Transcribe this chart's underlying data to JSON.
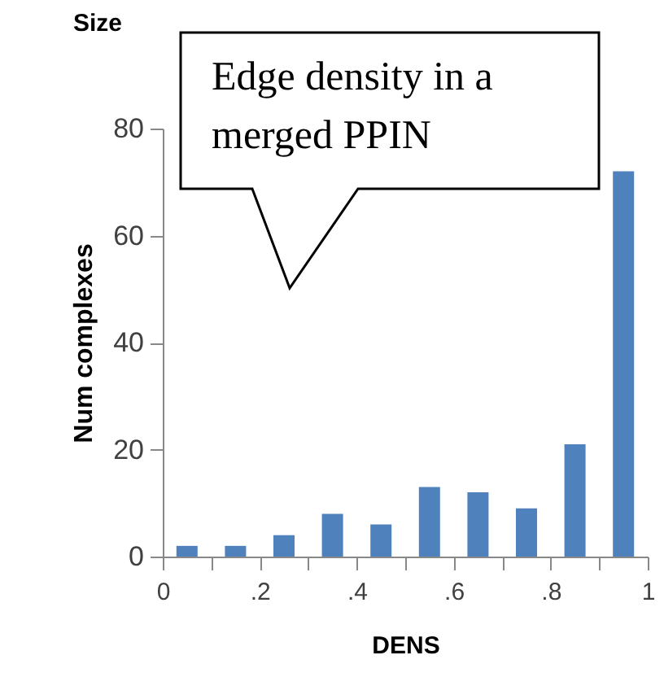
{
  "chart_data": {
    "type": "bar",
    "title": "Size",
    "xlabel": "DENS",
    "ylabel": "Num complexes",
    "annotations": [
      "Edge density in a merged PPIN"
    ],
    "x": [
      0.05,
      0.15,
      0.25,
      0.35,
      0.45,
      0.55,
      0.65,
      0.75,
      0.85,
      0.95
    ],
    "values": [
      2,
      2,
      4,
      8,
      6,
      13,
      12,
      9,
      21,
      72
    ],
    "color": "#4f81bd",
    "xlim": [
      0,
      1
    ],
    "xticks": [
      0,
      {
        "value": 0.1,
        "label": null
      },
      {
        "value": 0.2,
        "label": ".2"
      },
      {
        "value": 0.3,
        "label": null
      },
      {
        "value": 0.4,
        "label": ".4"
      },
      {
        "value": 0.5,
        "label": null
      },
      {
        "value": 0.6,
        "label": ".6"
      },
      {
        "value": 0.7,
        "label": null
      },
      {
        "value": 0.8,
        "label": ".8"
      },
      {
        "value": 0.9,
        "label": null
      },
      1
    ],
    "ylim": [
      0,
      80
    ],
    "yticks": [
      0,
      20,
      40,
      60,
      80
    ],
    "grid": false
  }
}
